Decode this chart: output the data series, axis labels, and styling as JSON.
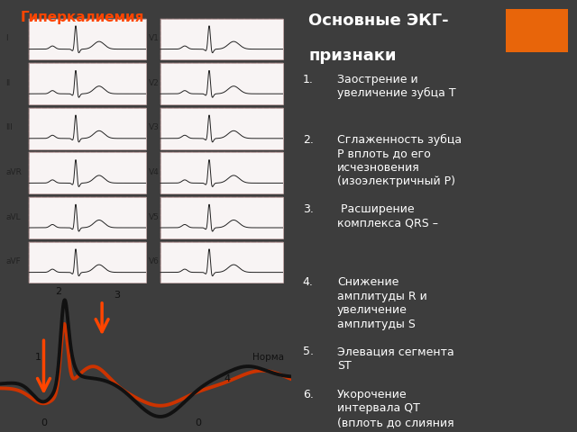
{
  "title": "Гиперкалиемия",
  "title_color": "#FF4500",
  "bg_dark": "#3d3d3d",
  "bg_left": "#ffffff",
  "text_color": "#ffffff",
  "heading_line1": "Основные ЭКГ-",
  "heading_line2": "признаки",
  "heading_fontsize": 13,
  "orange_rect_color": "#E8650A",
  "items": [
    "Заострение и\nувеличение зубца Т",
    "Сглаженность зубца\nР вплоть до его\nисчезновения\n(изоэлектричный Р)",
    " Расширение\nкомплекса QRS –",
    "Снижение\nамплитуды R и\nувеличение\nамплитуды S",
    "Элевация сегмента\nST",
    "Укорочение\nинтервала QT\n(вплоть до слияния\nкомплекса QRS с\nзубцом Т)"
  ],
  "item_fontsize": 9.0,
  "ecg_labels_left": [
    "I",
    "II",
    "III",
    "aVR",
    "aVL",
    "aVF"
  ],
  "ecg_labels_right": [
    "V1",
    "V2",
    "V3",
    "V4",
    "V5",
    "V6"
  ],
  "norma_label": "Норма",
  "arrow_color": "#FF4500",
  "black_line_color": "#111111",
  "red_line_color": "#CC3300",
  "grid_color": "#ffcccc",
  "ecg_box_color": "#f8f4f4"
}
